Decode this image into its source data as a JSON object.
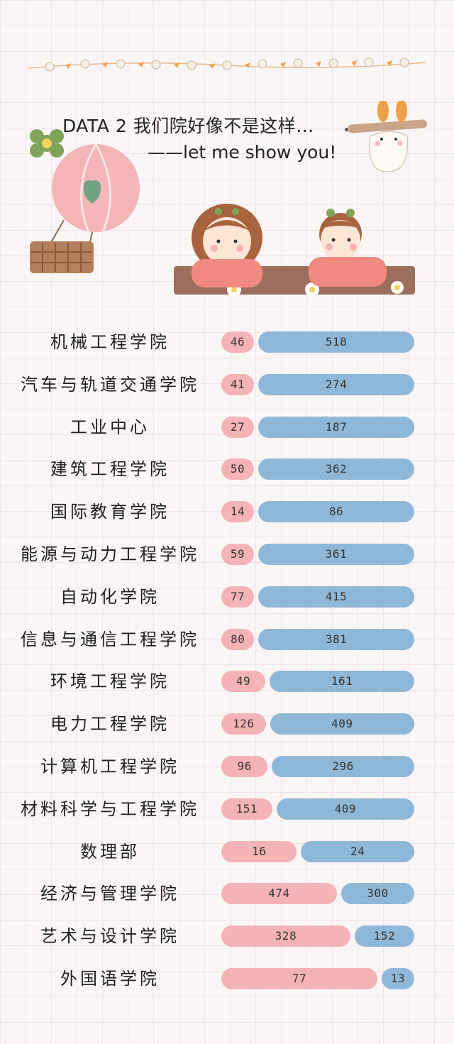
{
  "header": {
    "line1": "DATA 2   我们院好像不是这样…",
    "line2": "——let me show you!"
  },
  "colors": {
    "pink": "#f4b3b7",
    "blue": "#8fb8d8",
    "background": "#fbf6f6"
  },
  "chart_data": {
    "type": "bar",
    "categories": [
      "机械工程学院",
      "汽车与轨道交通学院",
      "工业中心",
      "建筑工程学院",
      "国际教育学院",
      "能源与动力工程学院",
      "自动化学院",
      "信息与通信工程学院",
      "环境工程学院",
      "电力工程学院",
      "计算机工程学院",
      "材料科学与工程学院",
      "数理部",
      "经济与管理学院",
      "艺术与设计学院",
      "外国语学院"
    ],
    "series": [
      {
        "color": "#f4b3b7",
        "values": [
          46,
          41,
          27,
          50,
          14,
          59,
          77,
          80,
          49,
          126,
          96,
          151,
          16,
          474,
          328,
          77
        ]
      },
      {
        "color": "#8fb8d8",
        "values": [
          518,
          274,
          187,
          362,
          86,
          361,
          415,
          381,
          161,
          409,
          296,
          409,
          24,
          300,
          152,
          13
        ]
      }
    ],
    "title": "",
    "xlabel": "",
    "ylabel": "",
    "orientation": "horizontal",
    "stacked": "side-by-side"
  }
}
